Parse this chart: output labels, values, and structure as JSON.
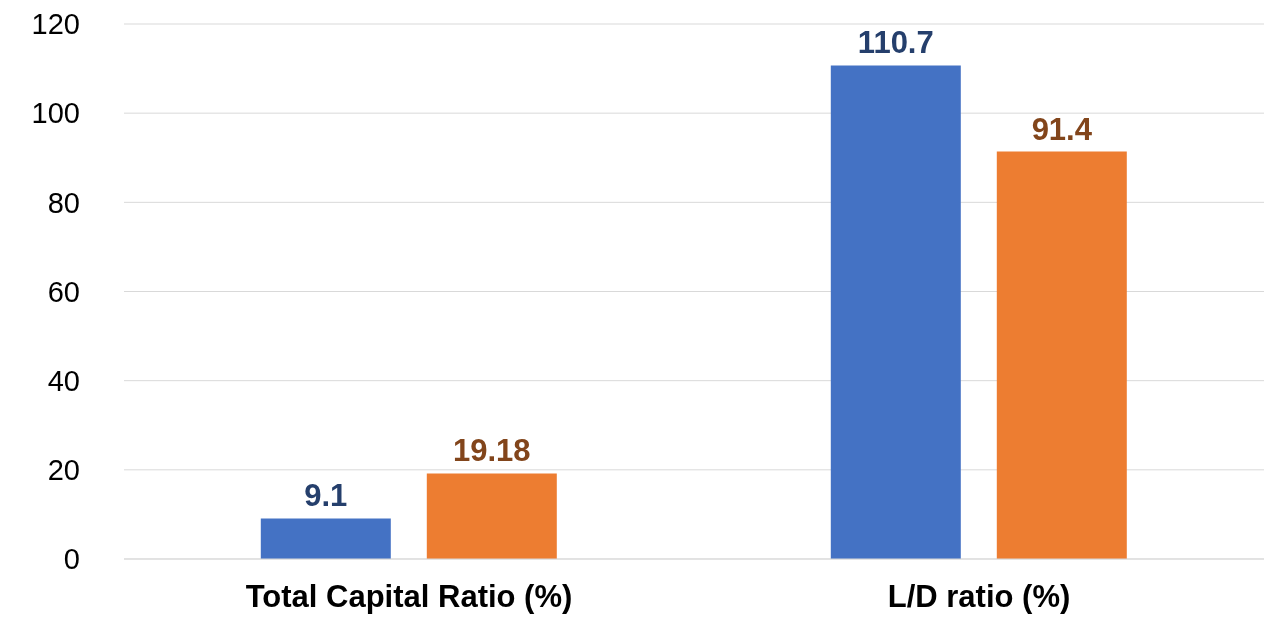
{
  "chart_data": {
    "type": "bar",
    "categories": [
      "Total Capital Ratio (%)",
      "L/D ratio (%)"
    ],
    "series": [
      {
        "color": "#4472c4",
        "values": [
          9.1,
          110.7
        ]
      },
      {
        "color": "#ed7d31",
        "values": [
          19.18,
          91.4
        ]
      }
    ],
    "ylim": [
      0,
      120
    ],
    "yticks": [
      0,
      20,
      40,
      60,
      80,
      100,
      120
    ],
    "grid": "y",
    "data_labels": true
  }
}
